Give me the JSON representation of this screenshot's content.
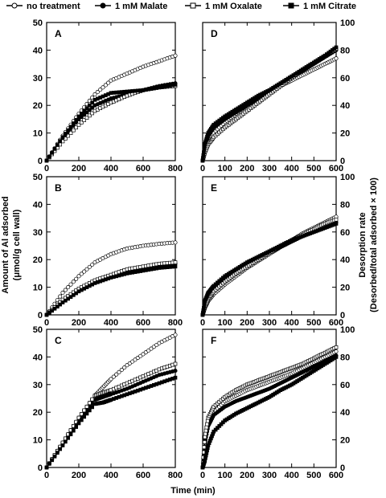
{
  "legend": [
    {
      "label": "no treatment",
      "marker": "open-circle"
    },
    {
      "label": "1 mM Malate",
      "marker": "filled-circle"
    },
    {
      "label": "1 mM Oxalate",
      "marker": "open-square"
    },
    {
      "label": "1 mM Citrate",
      "marker": "filled-square"
    }
  ],
  "axes_titles": {
    "left_line1": "Amount of Al adsorbed",
    "left_line2": "(μmol/g cell wall)",
    "right_line1": "Desorption rate",
    "right_line2": "(Desorbed/total adsorbed × 100)",
    "bottom": "Time (min)"
  },
  "chart_data": [
    {
      "type": "line",
      "panel": "A",
      "xlim": [
        0,
        800
      ],
      "ylim": [
        0,
        50
      ],
      "xticks": [
        0,
        200,
        400,
        600,
        800
      ],
      "yticks": [
        0,
        10,
        20,
        30,
        40,
        50
      ],
      "x": [
        0,
        100,
        200,
        300,
        400,
        500,
        600,
        700,
        800
      ],
      "series": [
        {
          "name": "no treatment",
          "marker": "open-circle",
          "values": [
            0,
            9,
            17,
            24,
            29,
            31.5,
            34,
            36,
            38
          ]
        },
        {
          "name": "1 mM Malate",
          "marker": "filled-circle",
          "values": [
            0,
            8,
            15,
            20,
            22.5,
            24,
            25.5,
            27,
            28
          ]
        },
        {
          "name": "1 mM Oxalate",
          "marker": "open-square",
          "values": [
            0,
            7,
            13,
            18,
            21,
            23.5,
            25.5,
            26.5,
            27
          ]
        },
        {
          "name": "1 mM Citrate",
          "marker": "filled-square",
          "values": [
            0,
            8.5,
            16,
            22,
            24.5,
            25,
            25.5,
            26.5,
            27.5
          ]
        }
      ]
    },
    {
      "type": "line",
      "panel": "D",
      "xlim": [
        0,
        600
      ],
      "ylim": [
        0,
        100
      ],
      "xticks": [
        0,
        100,
        200,
        300,
        400,
        500,
        600
      ],
      "yticks": [
        0,
        20,
        40,
        60,
        80,
        100
      ],
      "x": [
        0,
        10,
        25,
        50,
        100,
        150,
        200,
        250,
        300,
        350,
        400,
        450,
        500,
        550,
        600
      ],
      "series": [
        {
          "name": "no treatment",
          "marker": "open-circle",
          "values": [
            0,
            8,
            15,
            20,
            28,
            34,
            40,
            45,
            50,
            54,
            58,
            62,
            66,
            70,
            74
          ]
        },
        {
          "name": "1 mM Malate",
          "marker": "filled-circle",
          "values": [
            0,
            10,
            18,
            24,
            30,
            35,
            40,
            45,
            50,
            55,
            60,
            65,
            70,
            75,
            80
          ]
        },
        {
          "name": "1 mM Oxalate",
          "marker": "open-square",
          "values": [
            0,
            6,
            12,
            17,
            24,
            30,
            36,
            42,
            48,
            54,
            60,
            66,
            71,
            76,
            81
          ]
        },
        {
          "name": "1 mM Citrate",
          "marker": "filled-square",
          "values": [
            0,
            12,
            20,
            26,
            32,
            37,
            42,
            47,
            51,
            56,
            61,
            66,
            71,
            76,
            82
          ]
        }
      ]
    },
    {
      "type": "line",
      "panel": "B",
      "xlim": [
        0,
        800
      ],
      "ylim": [
        0,
        50
      ],
      "xticks": [
        0,
        200,
        400,
        600,
        800
      ],
      "yticks": [
        0,
        10,
        20,
        30,
        40,
        50
      ],
      "x": [
        0,
        100,
        200,
        300,
        400,
        500,
        600,
        700,
        800
      ],
      "series": [
        {
          "name": "no treatment",
          "marker": "open-circle",
          "values": [
            0,
            8,
            14,
            19,
            22,
            24,
            25,
            25.7,
            26.2
          ]
        },
        {
          "name": "1 mM Malate",
          "marker": "filled-circle",
          "values": [
            0,
            5,
            9,
            12,
            14,
            16,
            17,
            18,
            18.5
          ]
        },
        {
          "name": "1 mM Oxalate",
          "marker": "open-square",
          "values": [
            0,
            5.5,
            9.5,
            12.5,
            14.5,
            16.5,
            17.5,
            18.5,
            19
          ]
        },
        {
          "name": "1 mM Citrate",
          "marker": "filled-square",
          "values": [
            0,
            4.5,
            8.5,
            11.5,
            13.5,
            15,
            16,
            17,
            17.5
          ]
        }
      ]
    },
    {
      "type": "line",
      "panel": "E",
      "xlim": [
        0,
        600
      ],
      "ylim": [
        0,
        100
      ],
      "xticks": [
        0,
        100,
        200,
        300,
        400,
        500,
        600
      ],
      "yticks": [
        0,
        20,
        40,
        60,
        80,
        100
      ],
      "x": [
        0,
        10,
        25,
        50,
        100,
        150,
        200,
        250,
        300,
        350,
        400,
        450,
        500,
        550,
        600
      ],
      "series": [
        {
          "name": "no treatment",
          "marker": "open-circle",
          "values": [
            0,
            5,
            10,
            15,
            22,
            28,
            34,
            39,
            44,
            49,
            54,
            59,
            63,
            67,
            71
          ]
        },
        {
          "name": "1 mM Malate",
          "marker": "filled-circle",
          "values": [
            0,
            8,
            14,
            19,
            26,
            31,
            36,
            41,
            45,
            49,
            53,
            57,
            61,
            64,
            67
          ]
        },
        {
          "name": "1 mM Oxalate",
          "marker": "open-square",
          "values": [
            0,
            6,
            12,
            17,
            24,
            30,
            35,
            40,
            45,
            50,
            54,
            58,
            62,
            66,
            69
          ]
        },
        {
          "name": "1 mM Citrate",
          "marker": "filled-square",
          "values": [
            0,
            10,
            16,
            21,
            28,
            33,
            38,
            42,
            46,
            50,
            54,
            57,
            60,
            63,
            66
          ]
        }
      ]
    },
    {
      "type": "line",
      "panel": "C",
      "xlim": [
        0,
        800
      ],
      "ylim": [
        0,
        50
      ],
      "xticks": [
        0,
        200,
        400,
        600,
        800
      ],
      "yticks": [
        0,
        10,
        20,
        30,
        40,
        50
      ],
      "x": [
        0,
        100,
        200,
        300,
        350,
        400,
        500,
        600,
        700,
        800
      ],
      "series": [
        {
          "name": "no treatment",
          "marker": "open-circle",
          "values": [
            0,
            9,
            18,
            26,
            29,
            32,
            37,
            41,
            45,
            48
          ]
        },
        {
          "name": "1 mM Malate",
          "marker": "filled-circle",
          "values": [
            0,
            8.5,
            17,
            24.5,
            25.5,
            26.5,
            28.5,
            31,
            33.5,
            35
          ]
        },
        {
          "name": "1 mM Oxalate",
          "marker": "open-square",
          "values": [
            0,
            9,
            18,
            26,
            27,
            28,
            30.5,
            33,
            35.5,
            37.5
          ]
        },
        {
          "name": "1 mM Citrate",
          "marker": "filled-square",
          "values": [
            0,
            8,
            16,
            23,
            23.5,
            24.5,
            26.5,
            28.5,
            30.5,
            32.5
          ]
        }
      ]
    },
    {
      "type": "line",
      "panel": "F",
      "xlim": [
        0,
        600
      ],
      "ylim": [
        0,
        100
      ],
      "xticks": [
        0,
        100,
        200,
        300,
        400,
        500,
        600
      ],
      "yticks": [
        0,
        20,
        40,
        60,
        80,
        100
      ],
      "x": [
        0,
        10,
        25,
        50,
        100,
        150,
        200,
        250,
        300,
        350,
        400,
        450,
        500,
        550,
        600
      ],
      "series": [
        {
          "name": "no treatment",
          "marker": "open-circle",
          "values": [
            0,
            20,
            32,
            40,
            48,
            52,
            56,
            59,
            62,
            65,
            68,
            72,
            76,
            80,
            84
          ]
        },
        {
          "name": "1 mM Malate",
          "marker": "filled-circle",
          "values": [
            0,
            18,
            30,
            38,
            44,
            48,
            51,
            54,
            57,
            61,
            65,
            69,
            73,
            77,
            81
          ]
        },
        {
          "name": "1 mM Oxalate",
          "marker": "open-square",
          "values": [
            0,
            22,
            36,
            44,
            51,
            56,
            60,
            63,
            66,
            69,
            72,
            75,
            79,
            83,
            87
          ]
        },
        {
          "name": "1 mM Citrate",
          "marker": "filled-square",
          "values": [
            0,
            5,
            16,
            26,
            34,
            39,
            43,
            47,
            51,
            56,
            60,
            65,
            70,
            75,
            80
          ]
        }
      ]
    }
  ]
}
